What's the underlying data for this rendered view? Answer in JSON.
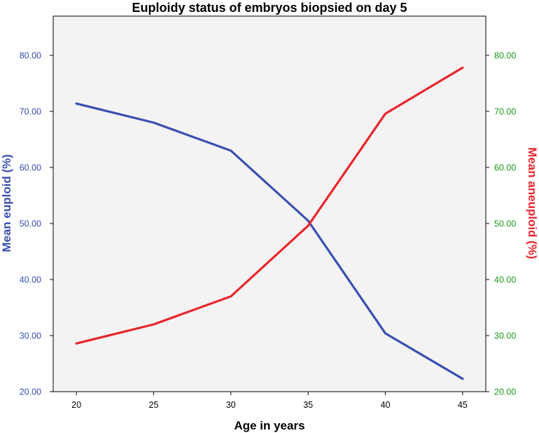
{
  "chart_data": {
    "type": "line",
    "title": "Euploidy status of embryos biopsied on day 5",
    "xlabel": "Age in years",
    "ylabel_left": "Mean euploid (%)",
    "ylabel_right": "Mean aneuploid (%)",
    "x": [
      20,
      25,
      30,
      35,
      40,
      45
    ],
    "x_ticks": [
      "20",
      "25",
      "30",
      "35",
      "40",
      "45"
    ],
    "y_ticks": [
      "20.00",
      "30.00",
      "40.00",
      "50.00",
      "60.00",
      "70.00",
      "80.00"
    ],
    "ylim": [
      20,
      87
    ],
    "grid": false,
    "series": [
      {
        "name": "Mean euploid (%)",
        "axis": "left",
        "color": "#3a4fb0",
        "values": [
          71.4,
          68.0,
          63.0,
          50.5,
          30.4,
          22.3
        ]
      },
      {
        "name": "Mean aneuploid (%)",
        "axis": "right",
        "color": "#e8262d",
        "values": [
          28.6,
          32.0,
          37.0,
          49.6,
          69.6,
          77.8
        ]
      }
    ],
    "colors": {
      "plot_background": "#f3f3f3",
      "left_tick_color": "#3a4fb0",
      "right_tick_color": "#1a9a1a",
      "left_label_color": "#3a4fb0",
      "right_label_color": "#e8262d"
    }
  }
}
